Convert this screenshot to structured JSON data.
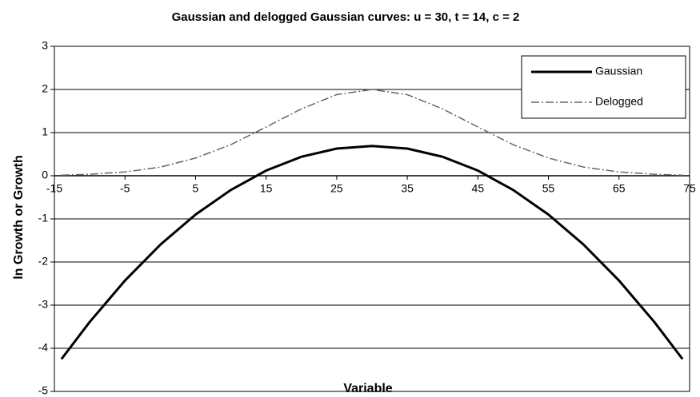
{
  "chart_data": {
    "type": "line",
    "title": "Gaussian and delogged Gaussian curves: u = 30, t = 14, c = 2",
    "x_label": "Variable",
    "y_label": "ln Growth or Growth",
    "x": [
      -14,
      -10,
      -5,
      0,
      5,
      10,
      15,
      20,
      25,
      30,
      35,
      40,
      45,
      50,
      55,
      60,
      65,
      70,
      74
    ],
    "series": [
      {
        "name": "Gaussian",
        "color": "#000000",
        "style": "solid",
        "values": [
          -4.25,
          -3.39,
          -2.43,
          -1.6,
          -0.9,
          -0.33,
          0.12,
          0.44,
          0.63,
          0.69,
          0.63,
          0.44,
          0.12,
          -0.33,
          -0.9,
          -1.6,
          -2.43,
          -3.39,
          -4.25
        ]
      },
      {
        "name": "Delogged",
        "color": "#666666",
        "style": "dash-dot",
        "values": [
          0.014,
          0.034,
          0.088,
          0.2,
          0.41,
          0.72,
          1.13,
          1.55,
          1.88,
          2.0,
          1.88,
          1.55,
          1.13,
          0.72,
          0.41,
          0.2,
          0.088,
          0.034,
          0.014
        ]
      }
    ],
    "xlim": [
      -15,
      75
    ],
    "xticks": [
      -15,
      -5,
      5,
      15,
      25,
      35,
      45,
      55,
      65,
      75
    ],
    "ylim": [
      -5,
      3
    ],
    "yticks": [
      -5,
      -4,
      -3,
      -2,
      -1,
      0,
      1,
      2,
      3
    ],
    "grid": true,
    "legend": "upper right"
  }
}
